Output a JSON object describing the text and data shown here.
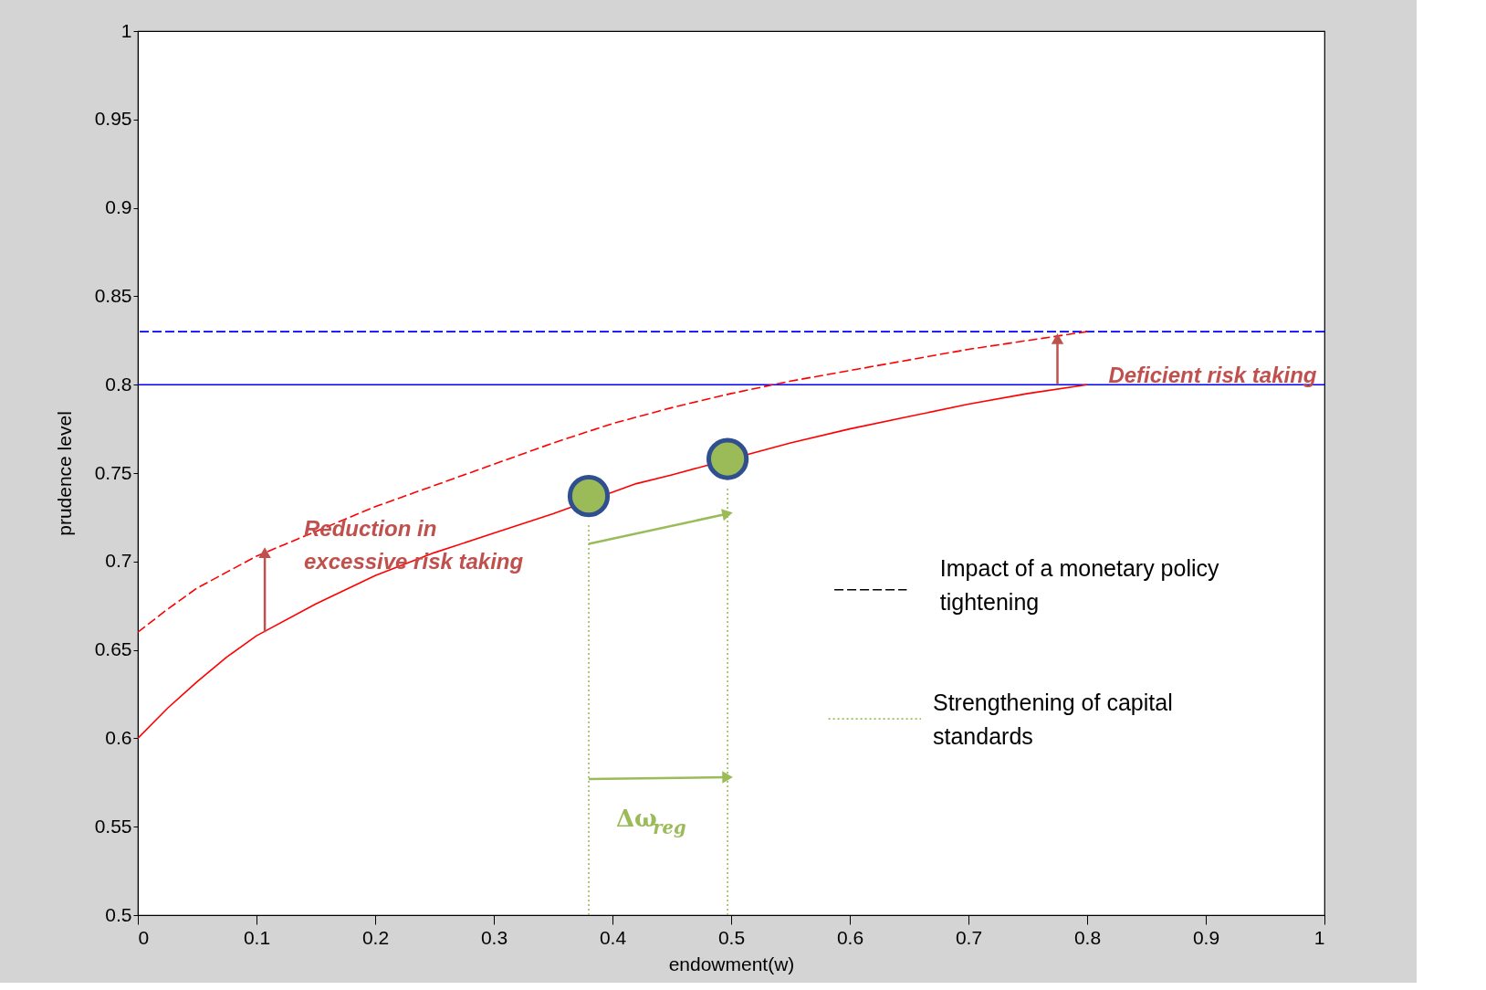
{
  "chart_data": {
    "type": "line",
    "xlabel": "endowment(w)",
    "ylabel": "prudence level",
    "xlim": [
      0,
      1
    ],
    "ylim": [
      0.5,
      1
    ],
    "xticks": [
      0,
      0.1,
      0.2,
      0.3,
      0.4,
      0.5,
      0.6,
      0.7,
      0.8,
      0.9,
      1
    ],
    "yticks": [
      0.5,
      0.55,
      0.6,
      0.65,
      0.7,
      0.75,
      0.8,
      0.85,
      0.9,
      0.95,
      1
    ],
    "grid": false,
    "series": [
      {
        "color": "#ff0000",
        "line_style": "solid",
        "x": [
          0,
          0.025,
          0.05,
          0.075,
          0.1,
          0.15,
          0.2,
          0.25,
          0.3,
          0.35,
          0.42,
          0.45,
          0.55,
          0.6,
          0.65,
          0.7,
          0.75,
          0.8
        ],
        "values": [
          0.6,
          0.617,
          0.632,
          0.646,
          0.658,
          0.676,
          0.692,
          0.705,
          0.716,
          0.727,
          0.744,
          0.749,
          0.767,
          0.775,
          0.782,
          0.789,
          0.795,
          0.8
        ]
      },
      {
        "color": "#ff0000",
        "line_style": "dashed",
        "x": [
          0,
          0.025,
          0.05,
          0.075,
          0.1,
          0.15,
          0.2,
          0.25,
          0.3,
          0.35,
          0.4,
          0.45,
          0.5,
          0.55,
          0.6,
          0.65,
          0.7,
          0.75,
          0.8
        ],
        "values": [
          0.66,
          0.673,
          0.685,
          0.694,
          0.703,
          0.717,
          0.731,
          0.743,
          0.755,
          0.767,
          0.778,
          0.787,
          0.795,
          0.802,
          0.808,
          0.814,
          0.82,
          0.825,
          0.83
        ]
      },
      {
        "color": "#9bbb59",
        "line_style": "dotted",
        "x": [
          0.38,
          0.38
        ],
        "values": [
          0.5,
          0.722
        ]
      },
      {
        "color": "#9bbb59",
        "line_style": "dotted",
        "x": [
          0.497,
          0.497
        ],
        "values": [
          0.5,
          0.742
        ]
      },
      {
        "type": "scatter",
        "color": "#9bbb59",
        "marker": "circle",
        "x": [
          0.38,
          0.497
        ],
        "values": [
          0.737,
          0.758
        ]
      },
      {
        "color": "#9bbb59",
        "line_style": "solid",
        "marker": "triangle",
        "x": [
          0.38,
          0.497
        ],
        "values": [
          0.71,
          0.727
        ]
      },
      {
        "color": "#9bbb59",
        "line_style": "solid",
        "marker": "triangle",
        "x": [
          0.38,
          0.497
        ],
        "values": [
          0.577,
          0.578
        ]
      },
      {
        "color": "#c0504d",
        "line_style": "solid",
        "marker": "triangle",
        "x": [
          0.107,
          0.107
        ],
        "values": [
          0.66,
          0.705
        ]
      },
      {
        "color": "#c0504d",
        "line_style": "solid",
        "marker": "triangle",
        "x": [
          0.775,
          0.775
        ],
        "values": [
          0.8,
          0.826
        ]
      },
      {
        "color": "#000000",
        "line_style": "dashed",
        "x": [
          0.587,
          0.648
        ],
        "values": [
          0.684,
          0.684
        ]
      },
      {
        "color": "#9bbb59",
        "line_style": "dotted",
        "x": [
          0.582,
          0.66
        ],
        "values": [
          0.611,
          0.611
        ]
      }
    ],
    "ref_lines": [
      {
        "axis": "y",
        "value": 0.8,
        "color": "#0000ff",
        "line_style": "solid"
      },
      {
        "axis": "y",
        "value": 0.83,
        "color": "#0000ff",
        "line_style": "dashed"
      }
    ],
    "annotations": [
      "Reduction in\nexcessive risk taking",
      "Deficient risk taking",
      "Δω$_{reg}$",
      "Impact of a monetary policy\ntightening",
      "Strengthening of capital\nstandards"
    ]
  }
}
